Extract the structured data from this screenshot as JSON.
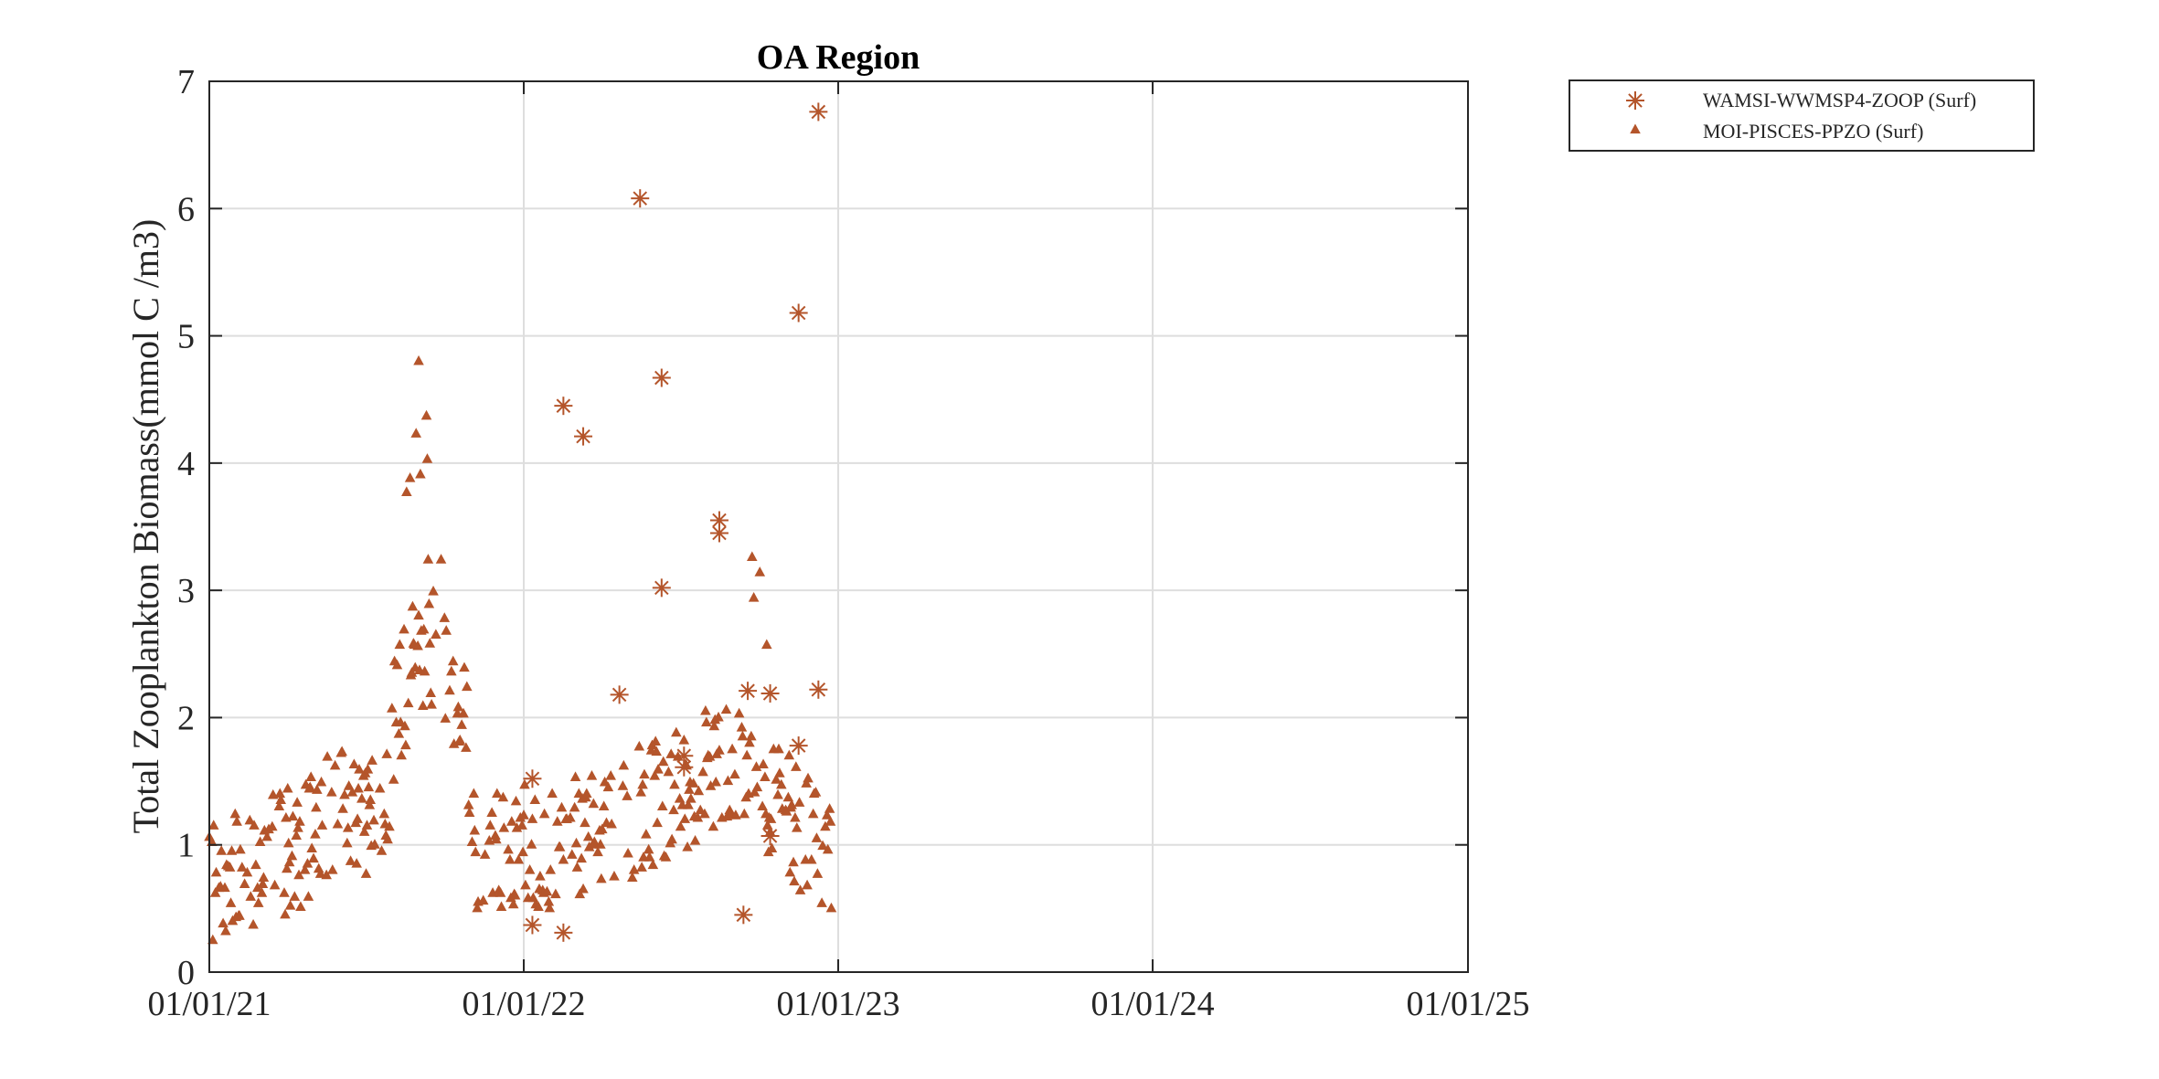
{
  "chart_data": {
    "type": "scatter",
    "title": "OA Region",
    "xlabel": "",
    "ylabel": "Total Zooplankton Biomass(mmol C /m3)",
    "x_axis_type": "date",
    "xlim": [
      "2021-01-01",
      "2025-01-01"
    ],
    "ylim": [
      0,
      7
    ],
    "x_ticks": [
      "2021-01-01",
      "2022-01-01",
      "2023-01-01",
      "2024-01-01",
      "2025-01-01"
    ],
    "x_tick_labels": [
      "01/01/21",
      "01/01/22",
      "01/01/23",
      "01/01/24",
      "01/01/25"
    ],
    "y_ticks": [
      0,
      1,
      2,
      3,
      4,
      5,
      6,
      7
    ],
    "y_tick_labels": [
      "0",
      "1",
      "2",
      "3",
      "4",
      "5",
      "6",
      "7"
    ],
    "grid": true,
    "legend_position": "outside-top-right",
    "series": [
      {
        "name": "WAMSI-WWMSP4-ZOOP (Surf)",
        "marker": "asterisk",
        "color": "#b4552b",
        "points": [
          [
            "2022-01-11",
            1.52
          ],
          [
            "2022-01-11",
            0.37
          ],
          [
            "2022-02-16",
            4.45
          ],
          [
            "2022-02-16",
            0.31
          ],
          [
            "2022-03-11",
            4.21
          ],
          [
            "2022-04-22",
            2.18
          ],
          [
            "2022-05-16",
            6.08
          ],
          [
            "2022-06-10",
            4.67
          ],
          [
            "2022-06-10",
            3.02
          ],
          [
            "2022-07-06",
            1.7
          ],
          [
            "2022-07-06",
            1.61
          ],
          [
            "2022-08-16",
            3.55
          ],
          [
            "2022-08-16",
            3.45
          ],
          [
            "2022-09-13",
            0.45
          ],
          [
            "2022-09-18",
            2.21
          ],
          [
            "2022-10-14",
            2.19
          ],
          [
            "2022-10-14",
            1.07
          ],
          [
            "2022-11-16",
            5.18
          ],
          [
            "2022-11-16",
            1.78
          ],
          [
            "2022-12-09",
            6.76
          ],
          [
            "2022-12-09",
            2.22
          ]
        ]
      },
      {
        "name": "MOI-PISCES-PPZO (Surf)",
        "marker": "triangle",
        "color": "#b4552b",
        "points": []
      }
    ]
  }
}
